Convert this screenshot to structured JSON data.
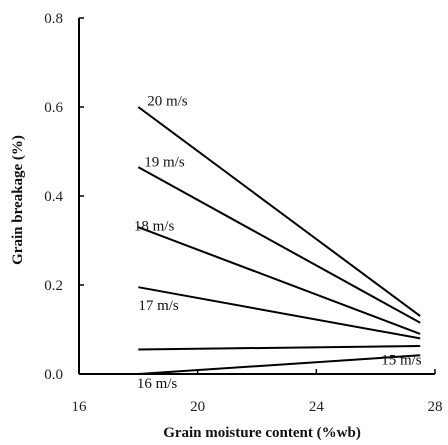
{
  "chart_data": {
    "type": "line",
    "title": "",
    "xlabel": "Grain moisture content (%wb)",
    "ylabel": "Grain breakage (%)",
    "xlim": [
      16,
      28
    ],
    "ylim": [
      0.0,
      0.8
    ],
    "xticks": [
      "16",
      "20",
      "24",
      "28"
    ],
    "yticks": [
      "0.0",
      "0.2",
      "0.4",
      "0.6",
      "0.8"
    ],
    "grid": false,
    "series": [
      {
        "name": "20 m/s",
        "x": [
          18.0,
          27.5
        ],
        "y": [
          0.6,
          0.13
        ]
      },
      {
        "name": "19 m/s",
        "x": [
          18.0,
          27.5
        ],
        "y": [
          0.465,
          0.115
        ]
      },
      {
        "name": "18 m/s",
        "x": [
          18.0,
          27.5
        ],
        "y": [
          0.33,
          0.09
        ]
      },
      {
        "name": "17 m/s",
        "x": [
          18.0,
          27.5
        ],
        "y": [
          0.195,
          0.08
        ]
      },
      {
        "name": "16 m/s",
        "x": [
          18.0,
          27.5
        ],
        "y": [
          0.055,
          0.063
        ]
      },
      {
        "name": "15 m/s",
        "x": [
          18.0,
          27.5
        ],
        "y": [
          0.0,
          0.042
        ]
      }
    ]
  }
}
